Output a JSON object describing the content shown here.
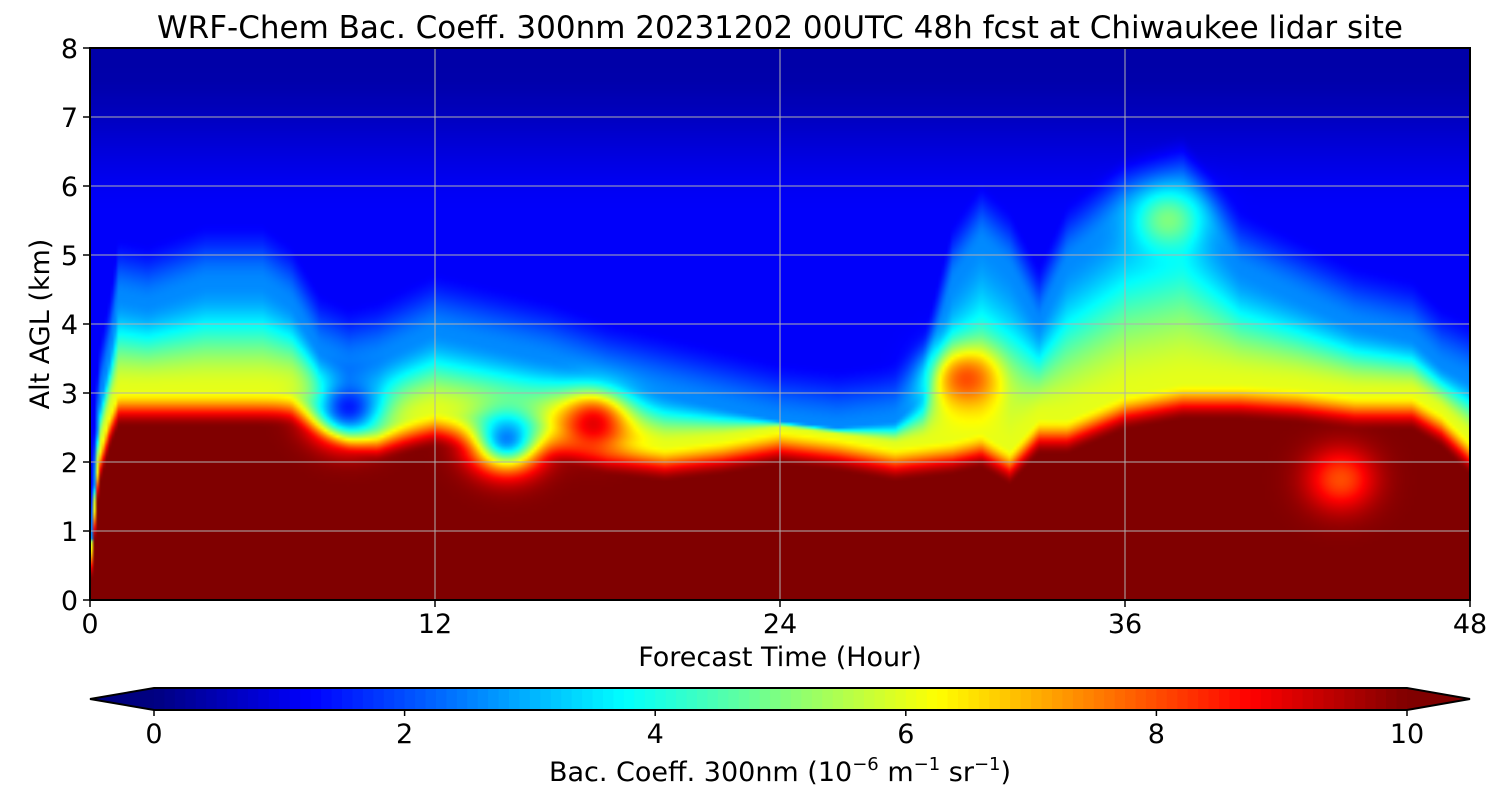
{
  "chart_data": {
    "type": "heatmap",
    "title": "WRF-Chem Bac. Coeff. 300nm  20231202 00UTC 48h fcst at Chiwaukee lidar site",
    "xlabel": "Forecast Time (Hour)",
    "ylabel": "Alt AGL (km)",
    "xlim": [
      0,
      48
    ],
    "ylim": [
      0,
      8
    ],
    "xticks": [
      0,
      12,
      24,
      36,
      48
    ],
    "yticks": [
      0,
      1,
      2,
      3,
      4,
      5,
      6,
      7,
      8
    ],
    "grid": true,
    "colormap": "jet",
    "colorbar": {
      "orientation": "horizontal",
      "placement": "bottom",
      "label_main": "Bac. Coeff. 300nm  (10",
      "label_exp1": "−6",
      "label_mid": " m",
      "label_exp2": "−1",
      "label_mid2": " sr",
      "label_exp3": "−1",
      "label_end": ")",
      "vmin": 0,
      "vmax": 10,
      "ticks": [
        0,
        2,
        4,
        6,
        8,
        10
      ],
      "extend": "both"
    },
    "profile_hours": [
      0,
      0.3,
      0.7,
      1,
      2,
      4,
      6,
      7,
      8,
      9,
      10,
      11,
      12,
      14,
      16,
      18,
      20,
      22,
      24,
      26,
      28,
      29,
      30,
      31,
      32,
      33,
      34,
      36,
      38,
      40,
      42,
      44,
      46,
      47,
      48
    ],
    "boundary_layer_top_km": [
      0.0,
      1.6,
      2.2,
      2.5,
      2.5,
      2.5,
      2.5,
      2.5,
      2.3,
      2.1,
      2.0,
      2.1,
      2.2,
      2.1,
      2.0,
      1.8,
      1.7,
      1.8,
      1.95,
      1.85,
      1.7,
      1.75,
      1.8,
      1.9,
      1.65,
      2.1,
      2.1,
      2.45,
      2.6,
      2.6,
      2.55,
      2.45,
      2.45,
      2.2,
      1.8
    ],
    "aerosol_layer_top_km": [
      0.5,
      2.8,
      3.6,
      4.4,
      4.3,
      4.6,
      4.6,
      4.3,
      3.6,
      3.4,
      3.5,
      3.7,
      3.9,
      3.7,
      3.5,
      3.2,
      3.0,
      2.8,
      2.6,
      2.5,
      2.6,
      3.0,
      4.6,
      5.2,
      4.8,
      4.0,
      4.9,
      5.6,
      5.9,
      4.8,
      4.4,
      4.0,
      3.8,
      3.4,
      3.2
    ],
    "bl_max_value": 10,
    "aerosol_layer_value": 6,
    "free_troposphere_value": 1.2,
    "upper_air_value": 0.4,
    "local_features": [
      {
        "hour": 9,
        "alt_km": 2.8,
        "value": 1.5
      },
      {
        "hour": 14.5,
        "alt_km": 2.35,
        "value": 2.5
      },
      {
        "hour": 17.5,
        "alt_km": 2.55,
        "value": 9
      },
      {
        "hour": 37.5,
        "alt_km": 5.5,
        "value": 5
      },
      {
        "hour": 30.5,
        "alt_km": 3.2,
        "value": 8
      },
      {
        "hour": 43.5,
        "alt_km": 1.75,
        "value": 8
      }
    ]
  }
}
